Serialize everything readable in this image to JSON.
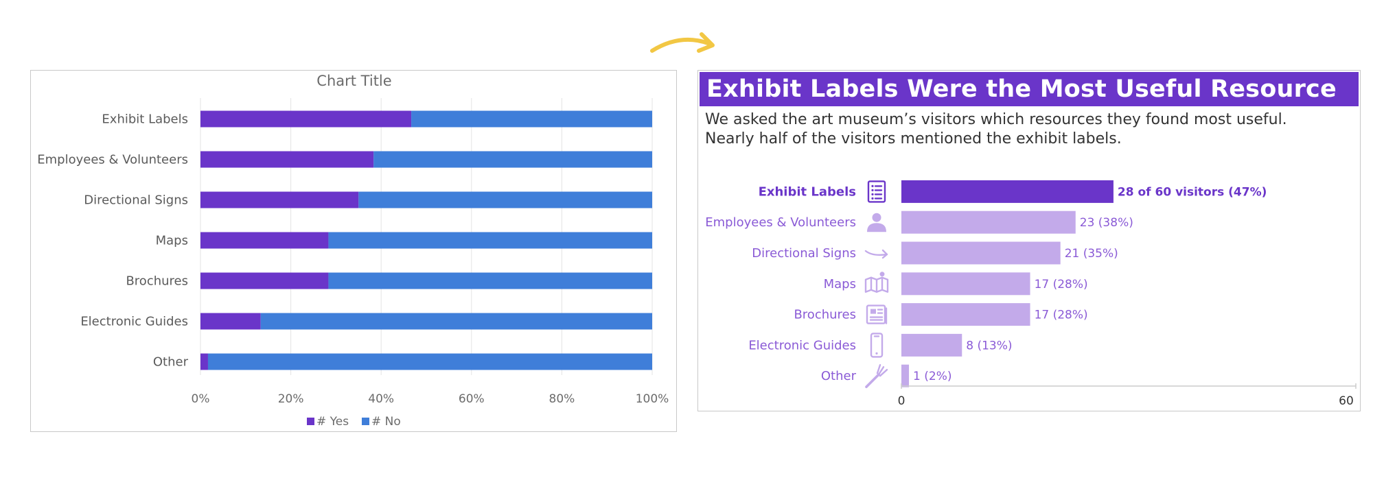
{
  "colors": {
    "yes": "#6a35c9",
    "no": "#3f7ed9",
    "highlight_bar": "#6a35c9",
    "muted_bar": "#c3aaea",
    "muted_text": "#8a5ad6",
    "arrow": "#f2c744"
  },
  "left_chart": {
    "title": "Chart Title",
    "categories": [
      "Exhibit Labels",
      "Employees & Volunteers",
      "Directional Signs",
      "Maps",
      "Brochures",
      "Electronic Guides",
      "Other"
    ],
    "x_tick_labels": [
      "0%",
      "20%",
      "40%",
      "60%",
      "80%",
      "100%"
    ],
    "legend": [
      {
        "label": "# Yes",
        "color_key": "yes"
      },
      {
        "label": "# No",
        "color_key": "no"
      }
    ]
  },
  "right_chart": {
    "headline": "Exhibit Labels Were the Most Useful Resource",
    "subtitle_line1": "We asked the art museum’s visitors which resources they found most useful.",
    "subtitle_line2": "Nearly half of the visitors mentioned the exhibit labels.",
    "axis_min_label": "0",
    "axis_max_label": "60",
    "rows": [
      {
        "label": "Exhibit Labels",
        "icon": "list-document-icon",
        "value": 28,
        "value_label": "28 of 60 visitors (47%)",
        "highlight": true
      },
      {
        "label": "Employees & Volunteers",
        "icon": "person-icon",
        "value": 23,
        "value_label": "23 (38%)",
        "highlight": false
      },
      {
        "label": "Directional Signs",
        "icon": "curved-arrow-icon",
        "value": 21,
        "value_label": "21 (35%)",
        "highlight": false
      },
      {
        "label": "Maps",
        "icon": "map-icon",
        "value": 17,
        "value_label": "17 (28%)",
        "highlight": false
      },
      {
        "label": "Brochures",
        "icon": "newspaper-icon",
        "value": 17,
        "value_label": "17 (28%)",
        "highlight": false
      },
      {
        "label": "Electronic Guides",
        "icon": "phone-icon",
        "value": 8,
        "value_label": "8 (13%)",
        "highlight": false
      },
      {
        "label": "Other",
        "icon": "fork-icon",
        "value": 1,
        "value_label": "1 (2%)",
        "highlight": false
      }
    ]
  },
  "chart_data": [
    {
      "type": "bar",
      "orientation": "horizontal",
      "stacked": "100%",
      "title": "Chart Title",
      "categories": [
        "Exhibit Labels",
        "Employees & Volunteers",
        "Directional Signs",
        "Maps",
        "Brochures",
        "Electronic Guides",
        "Other"
      ],
      "series": [
        {
          "name": "# Yes",
          "values": [
            28,
            23,
            21,
            17,
            17,
            8,
            1
          ]
        },
        {
          "name": "# No",
          "values": [
            32,
            37,
            39,
            43,
            43,
            52,
            59
          ]
        }
      ],
      "xlim": [
        0,
        100
      ],
      "x_unit": "%",
      "grid": true,
      "legend": "bottom"
    },
    {
      "type": "bar",
      "orientation": "horizontal",
      "title": "Exhibit Labels Were the Most Useful Resource",
      "categories": [
        "Exhibit Labels",
        "Employees & Volunteers",
        "Directional Signs",
        "Maps",
        "Brochures",
        "Electronic Guides",
        "Other"
      ],
      "values": [
        28,
        23,
        21,
        17,
        17,
        8,
        1
      ],
      "data_labels": [
        "28 of 60 visitors (47%)",
        "23 (38%)",
        "21 (35%)",
        "17 (28%)",
        "17 (28%)",
        "8 (13%)",
        "1 (2%)"
      ],
      "xlim": [
        0,
        60
      ],
      "grid": false,
      "legend": "none"
    }
  ]
}
